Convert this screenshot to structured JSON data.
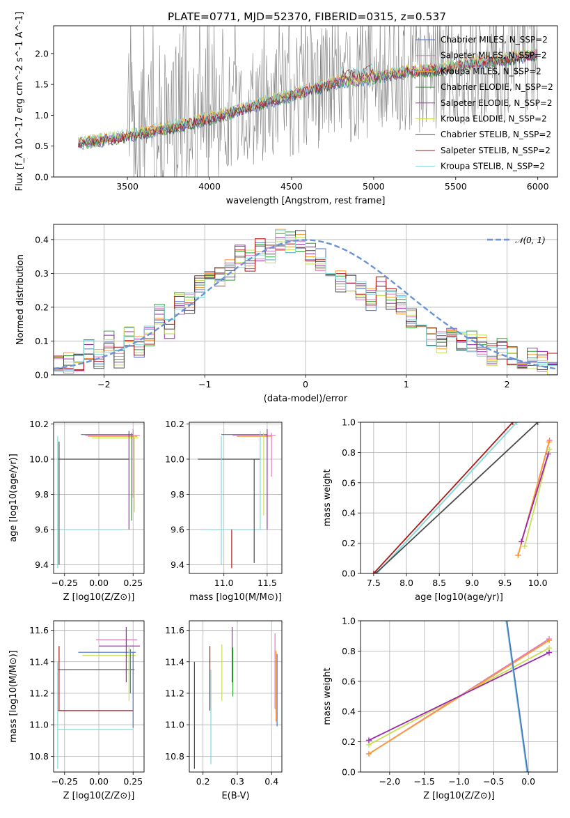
{
  "figure": {
    "title": "PLATE=0771, MJD=52370, FIBERID=0315, z=0.537"
  },
  "colors": {
    "chabrier_miles": "#4c72c8",
    "salpeter_miles": "#e377c2",
    "kroupa_miles": "#ff9a2e",
    "chabrier_elodie": "#2ca02c",
    "salpeter_elodie": "#9b27b0",
    "kroupa_elodie": "#c6e04f",
    "chabrier_stelib": "#4a4a4a",
    "salpeter_stelib": "#b01515",
    "kroupa_stelib": "#7fd8d8",
    "gauss": "#6a93d6",
    "data_spectrum": "#808080"
  },
  "chart_data": [
    {
      "id": "spectrum",
      "type": "line",
      "title": "PLATE=0771, MJD=52370, FIBERID=0315, z=0.537",
      "xlabel": "wavelength [Angstrom, rest frame]",
      "ylabel": "Flux [f_λ 10^-17 erg cm^-2 s^-1 A^-1]",
      "xlim": [
        3050,
        6120
      ],
      "ylim": [
        0,
        2.45
      ],
      "xticks": [
        "3500",
        "4000",
        "4500",
        "5000",
        "5500",
        "6000"
      ],
      "yticks": [
        "0.0",
        "0.5",
        "1.0",
        "1.5",
        "2.0"
      ],
      "legend_position": "top-right",
      "legend": [
        "Chabrier MILES, N_SSP=2",
        "Salpeter MILES, N_SSP=2",
        "Kroupa MILES, N_SSP=2",
        "Chabrier ELODIE, N_SSP=2",
        "Salpeter ELODIE, N_SSP=2",
        "Kroupa ELODIE, N_SSP=2",
        "Chabrier STELIB, N_SSP=2",
        "Salpeter STELIB, N_SSP=2",
        "Kroupa STELIB, N_SSP=2"
      ],
      "model_x": [
        3200,
        3400,
        3600,
        3800,
        4000,
        4200,
        4400,
        4600,
        4800,
        4900,
        5000,
        5200,
        5400,
        5600,
        5800,
        6000
      ],
      "model_y": [
        0.55,
        0.62,
        0.72,
        0.82,
        0.95,
        1.1,
        1.25,
        1.4,
        1.55,
        1.55,
        1.62,
        1.7,
        1.75,
        1.85,
        1.9,
        2.0
      ],
      "data_noise_start": 3500
    },
    {
      "id": "residuals",
      "type": "step",
      "xlabel": "(data-model)/error",
      "ylabel": "Normed distribution",
      "xlim": [
        -2.5,
        2.5
      ],
      "ylim": [
        0,
        0.445
      ],
      "xticks": [
        "−2",
        "−1",
        "0",
        "1",
        "2"
      ],
      "yticks": [
        "0.0",
        "0.1",
        "0.2",
        "0.3",
        "0.4"
      ],
      "grid": true,
      "legend_position": "top-right",
      "legend": [
        "𝒩(0, 1)"
      ],
      "bin_edges_start": -2.5,
      "bin_width": 0.1,
      "histogram": [
        0.03,
        0.02,
        0.04,
        0.03,
        0.05,
        0.08,
        0.04,
        0.05,
        0.1,
        0.08,
        0.05,
        0.11,
        0.1,
        0.08,
        0.12,
        0.2,
        0.18,
        0.19,
        0.14,
        0.21,
        0.22,
        0.21,
        0.26,
        0.25,
        0.28,
        0.26,
        0.29,
        0.31,
        0.32,
        0.35,
        0.34,
        0.38,
        0.37,
        0.39,
        0.36,
        0.4,
        0.38,
        0.39,
        0.4,
        0.35,
        0.36,
        0.33,
        0.34,
        0.32,
        0.3,
        0.28,
        0.27,
        0.3,
        0.25,
        0.24,
        0.22,
        0.26,
        0.19,
        0.22,
        0.21,
        0.15,
        0.17,
        0.18,
        0.14,
        0.12,
        0.13,
        0.1,
        0.11,
        0.09,
        0.1,
        0.08,
        0.1,
        0.09,
        0.07,
        0.06,
        0.08,
        0.07,
        0.05,
        0.06,
        0.04,
        0.05,
        0.03,
        0.04,
        0.03,
        0.04
      ]
    },
    {
      "id": "age_vs_Z",
      "type": "scatter",
      "xlabel": "Z [log10(Z/Z⊙)]",
      "ylabel": "age  [log10(age/yr)]",
      "xlim": [
        -0.33,
        0.33
      ],
      "ylim": [
        9.35,
        10.21
      ],
      "xticks": [
        "−0.25",
        "0.00",
        "0.25"
      ],
      "yticks": [
        "9.4",
        "9.6",
        "9.8",
        "10.0",
        "10.2"
      ],
      "grid": true,
      "hlines": [
        {
          "y": 10.14,
          "x0": -0.13,
          "x1": 0.25,
          "color": "chabrier_miles"
        },
        {
          "y": 10.135,
          "x0": -0.1,
          "x1": 0.3,
          "color": "salpeter_miles"
        },
        {
          "y": 10.13,
          "x0": -0.08,
          "x1": 0.28,
          "color": "kroupa_miles"
        },
        {
          "y": 10.12,
          "x0": -0.05,
          "x1": 0.29,
          "color": "kroupa_elodie"
        },
        {
          "y": 10.0,
          "x0": -0.3,
          "x1": 0.22,
          "color": "chabrier_stelib"
        },
        {
          "y": 9.6,
          "x0": -0.3,
          "x1": 0.2,
          "color": "kroupa_stelib"
        }
      ],
      "vlines": [
        {
          "x": -0.3,
          "y0": 9.38,
          "y1": 10.13,
          "color": "kroupa_stelib"
        },
        {
          "x": -0.29,
          "y0": 9.4,
          "y1": 10.1,
          "color": "chabrier_stelib"
        },
        {
          "x": 0.22,
          "y0": 9.6,
          "y1": 10.16,
          "color": "salpeter_elodie"
        },
        {
          "x": 0.24,
          "y0": 9.65,
          "y1": 10.15,
          "color": "chabrier_elodie"
        },
        {
          "x": 0.26,
          "y0": 9.7,
          "y1": 10.14,
          "color": "kroupa_elodie"
        },
        {
          "x": 0.25,
          "y0": 9.78,
          "y1": 10.17,
          "color": "salpeter_miles"
        }
      ]
    },
    {
      "id": "age_vs_mass",
      "type": "scatter",
      "xlabel": "mass [log10(M/M⊙)]",
      "ylabel": "",
      "xlim": [
        10.6,
        11.67
      ],
      "ylim": [
        9.35,
        10.21
      ],
      "xticks": [
        "11.0",
        "11.5"
      ],
      "yticks": [
        "9.4",
        "9.6",
        "9.8",
        "10.0",
        "10.2"
      ],
      "grid": true,
      "hlines": [
        {
          "y": 10.14,
          "x0": 10.97,
          "x1": 11.5,
          "color": "chabrier_miles"
        },
        {
          "y": 10.135,
          "x0": 11.1,
          "x1": 11.6,
          "color": "salpeter_miles"
        },
        {
          "y": 10.13,
          "x0": 11.15,
          "x1": 11.55,
          "color": "kroupa_miles"
        },
        {
          "y": 10.0,
          "x0": 10.7,
          "x1": 11.42,
          "color": "chabrier_stelib"
        },
        {
          "y": 9.6,
          "x0": 10.75,
          "x1": 11.45,
          "color": "kroupa_stelib"
        }
      ],
      "vlines": [
        {
          "x": 10.97,
          "y0": 9.4,
          "y1": 10.13,
          "color": "kroupa_stelib"
        },
        {
          "x": 11.09,
          "y0": 9.38,
          "y1": 9.6,
          "color": "salpeter_stelib"
        },
        {
          "x": 11.35,
          "y0": 9.41,
          "y1": 10.0,
          "color": "chabrier_stelib"
        },
        {
          "x": 11.42,
          "y0": 9.6,
          "y1": 10.16,
          "color": "kroupa_stelib"
        },
        {
          "x": 11.46,
          "y0": 9.68,
          "y1": 10.15,
          "color": "kroupa_elodie"
        },
        {
          "x": 11.5,
          "y0": 9.6,
          "y1": 10.17,
          "color": "salpeter_elodie"
        },
        {
          "x": 11.55,
          "y0": 9.9,
          "y1": 10.15,
          "color": "salpeter_miles"
        }
      ]
    },
    {
      "id": "weight_vs_age",
      "type": "line",
      "xlabel": "age  [log10(age/yr)]",
      "ylabel": "mass weight",
      "xlim": [
        7.3,
        10.3
      ],
      "ylim": [
        0,
        1.0
      ],
      "xticks": [
        "7.5",
        "8.0",
        "8.5",
        "9.0",
        "9.5",
        "10.0"
      ],
      "yticks": [
        "0.0",
        "0.2",
        "0.4",
        "0.6",
        "0.8",
        "1.0"
      ],
      "grid": true,
      "lines": [
        {
          "x": [
            7.55,
            9.68
          ],
          "y": [
            0.0,
            1.0
          ],
          "color": "kroupa_stelib"
        },
        {
          "x": [
            7.5,
            9.62
          ],
          "y": [
            0.0,
            1.0
          ],
          "color": "salpeter_stelib"
        },
        {
          "x": [
            7.53,
            10.0
          ],
          "y": [
            0.0,
            1.0
          ],
          "color": "chabrier_stelib"
        },
        {
          "x": [
            9.7,
            10.18
          ],
          "y": [
            0.12,
            0.88
          ],
          "color": "salpeter_miles"
        },
        {
          "x": [
            9.7,
            10.17
          ],
          "y": [
            0.12,
            0.87
          ],
          "color": "kroupa_miles"
        },
        {
          "x": [
            9.8,
            10.18
          ],
          "y": [
            0.18,
            0.82
          ],
          "color": "kroupa_elodie"
        },
        {
          "x": [
            9.75,
            10.16
          ],
          "y": [
            0.21,
            0.79
          ],
          "color": "salpeter_elodie"
        }
      ]
    },
    {
      "id": "mass_vs_Z",
      "type": "scatter",
      "xlabel": "Z [log10(Z/Z⊙)]",
      "ylabel": "mass [log10(M/M⊙)]",
      "xlim": [
        -0.33,
        0.33
      ],
      "ylim": [
        10.7,
        11.66
      ],
      "xticks": [
        "−0.25",
        "0.00",
        "0.25"
      ],
      "yticks": [
        "10.8",
        "11.0",
        "11.2",
        "11.4",
        "11.6"
      ],
      "grid": true,
      "hlines": [
        {
          "y": 11.54,
          "x0": -0.02,
          "x1": 0.28,
          "color": "salpeter_miles"
        },
        {
          "y": 11.5,
          "x0": 0.0,
          "x1": 0.3,
          "color": "salpeter_elodie"
        },
        {
          "y": 11.46,
          "x0": -0.15,
          "x1": 0.27,
          "color": "chabrier_miles"
        },
        {
          "y": 11.44,
          "x0": -0.12,
          "x1": 0.27,
          "color": "kroupa_elodie"
        },
        {
          "y": 11.35,
          "x0": -0.3,
          "x1": 0.26,
          "color": "chabrier_stelib"
        },
        {
          "y": 11.09,
          "x0": -0.3,
          "x1": 0.25,
          "color": "salpeter_stelib"
        },
        {
          "y": 10.97,
          "x0": -0.3,
          "x1": 0.25,
          "color": "kroupa_stelib"
        }
      ],
      "vlines": [
        {
          "x": -0.3,
          "y0": 10.72,
          "y1": 11.4,
          "color": "kroupa_stelib"
        },
        {
          "x": -0.29,
          "y0": 11.09,
          "y1": 11.5,
          "color": "salpeter_stelib"
        },
        {
          "x": 0.2,
          "y0": 11.27,
          "y1": 11.62,
          "color": "salpeter_elodie"
        },
        {
          "x": 0.22,
          "y0": 11.15,
          "y1": 11.5,
          "color": "kroupa_elodie"
        },
        {
          "x": 0.23,
          "y0": 11.2,
          "y1": 11.48,
          "color": "chabrier_elodie"
        },
        {
          "x": 0.25,
          "y0": 10.98,
          "y1": 11.46,
          "color": "chabrier_miles"
        }
      ]
    },
    {
      "id": "mass_vs_EBV",
      "type": "scatter",
      "xlabel": "E(B-V)",
      "ylabel": "",
      "xlim": [
        0.16,
        0.43
      ],
      "ylim": [
        10.7,
        11.66
      ],
      "xticks": [
        "0.2",
        "0.3",
        "0.4"
      ],
      "yticks": [
        "10.8",
        "11.0",
        "11.2",
        "11.4",
        "11.6"
      ],
      "grid": true,
      "vlines": [
        {
          "x": 0.175,
          "y0": 10.72,
          "y1": 11.4,
          "color": "chabrier_stelib"
        },
        {
          "x": 0.22,
          "y0": 11.09,
          "y1": 11.5,
          "color": "salpeter_stelib"
        },
        {
          "x": 0.223,
          "y0": 10.75,
          "y1": 11.35,
          "color": "kroupa_stelib"
        },
        {
          "x": 0.255,
          "y0": 11.15,
          "y1": 11.51,
          "color": "kroupa_elodie"
        },
        {
          "x": 0.285,
          "y0": 11.27,
          "y1": 11.62,
          "color": "salpeter_elodie"
        },
        {
          "x": 0.287,
          "y0": 11.18,
          "y1": 11.49,
          "color": "chabrier_elodie"
        },
        {
          "x": 0.41,
          "y0": 11.1,
          "y1": 11.58,
          "color": "salpeter_miles"
        },
        {
          "x": 0.413,
          "y0": 11.02,
          "y1": 11.47,
          "color": "kroupa_miles"
        },
        {
          "x": 0.416,
          "y0": 10.99,
          "y1": 11.45,
          "color": "chabrier_miles"
        }
      ]
    },
    {
      "id": "weight_vs_Z",
      "type": "line",
      "xlabel": "Z [log10(Z/Z⊙)]",
      "ylabel": "mass weight",
      "xlim": [
        -2.42,
        0.42
      ],
      "ylim": [
        0,
        1.0
      ],
      "xticks": [
        "−2.0",
        "−1.5",
        "−1.0",
        "−0.5",
        "0.0"
      ],
      "yticks": [
        "0.0",
        "0.2",
        "0.4",
        "0.6",
        "0.8",
        "1.0"
      ],
      "grid": true,
      "lines": [
        {
          "x": [
            -2.3,
            0.3
          ],
          "y": [
            0.12,
            0.88
          ],
          "color": "salpeter_miles"
        },
        {
          "x": [
            -2.3,
            0.3
          ],
          "y": [
            0.12,
            0.87
          ],
          "color": "kroupa_miles"
        },
        {
          "x": [
            -2.3,
            0.3
          ],
          "y": [
            0.18,
            0.82
          ],
          "color": "kroupa_elodie"
        },
        {
          "x": [
            -2.3,
            0.3
          ],
          "y": [
            0.21,
            0.79
          ],
          "color": "salpeter_elodie"
        },
        {
          "x": [
            -0.32,
            -0.02
          ],
          "y": [
            1.0,
            0.0
          ],
          "color": "kroupa_stelib"
        },
        {
          "x": [
            -0.31,
            -0.01
          ],
          "y": [
            1.0,
            0.0
          ],
          "color": "chabrier_miles"
        }
      ]
    }
  ]
}
